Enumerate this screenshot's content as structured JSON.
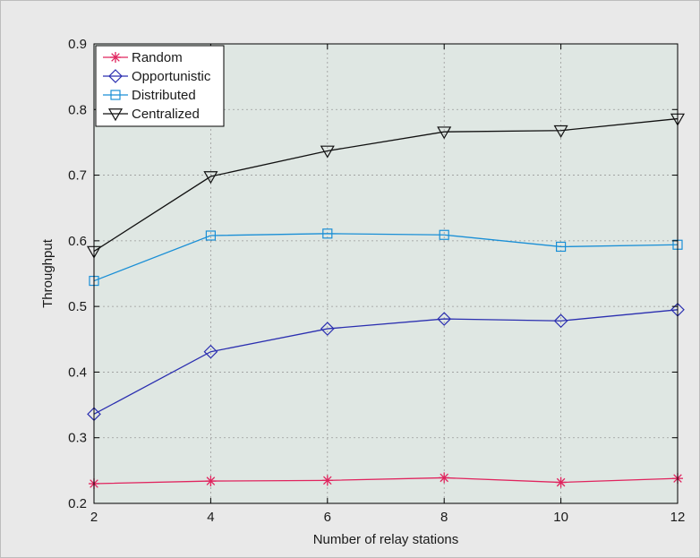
{
  "chart_data": {
    "type": "line",
    "title": "",
    "xlabel": "Number of relay stations",
    "ylabel": "Throughput",
    "x": [
      2,
      4,
      6,
      8,
      10,
      12
    ],
    "xlim": [
      2,
      12
    ],
    "ylim": [
      0.2,
      0.9
    ],
    "x_ticks": [
      "2",
      "4",
      "6",
      "8",
      "10",
      "12"
    ],
    "y_ticks": [
      "0.2",
      "0.3",
      "0.4",
      "0.5",
      "0.6",
      "0.7",
      "0.8",
      "0.9"
    ],
    "grid": true,
    "legend_position": "top-left",
    "background_color": "#dfe7e3",
    "series": [
      {
        "name": "Random",
        "marker": "asterisk",
        "color": "#e0245e",
        "values": [
          0.23,
          0.234,
          0.235,
          0.239,
          0.232,
          0.238
        ]
      },
      {
        "name": "Opportunistic",
        "marker": "diamond",
        "color": "#2b2fb0",
        "values": [
          0.336,
          0.431,
          0.466,
          0.481,
          0.478,
          0.495
        ]
      },
      {
        "name": "Distributed",
        "marker": "square",
        "color": "#1a8fd6",
        "values": [
          0.539,
          0.608,
          0.611,
          0.609,
          0.591,
          0.594
        ]
      },
      {
        "name": "Centralized",
        "marker": "triangle-down",
        "color": "#111111",
        "values": [
          0.584,
          0.698,
          0.737,
          0.766,
          0.768,
          0.786
        ]
      }
    ]
  }
}
